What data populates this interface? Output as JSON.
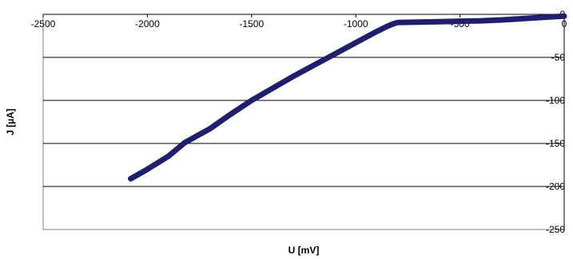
{
  "chart_data": {
    "type": "line",
    "xlabel": "U [mV]",
    "ylabel": "J [µA]",
    "xlim": [
      -2500,
      0
    ],
    "ylim": [
      -250,
      0
    ],
    "xticks": [
      -2500,
      -2000,
      -1500,
      -1000,
      -500,
      0
    ],
    "yticks": [
      0,
      -50,
      -100,
      -150,
      -200,
      -250
    ],
    "grid": "horizontal",
    "legend": "none",
    "series": [
      {
        "color": "#1f1f6e",
        "x": [
          -2080,
          -2000,
          -1900,
          -1820,
          -1700,
          -1600,
          -1500,
          -1400,
          -1300,
          -1200,
          -1100,
          -1000,
          -900,
          -850,
          -820,
          -800,
          -700,
          -600,
          -500,
          -400,
          -300,
          -200,
          -100,
          0
        ],
        "y": [
          -191,
          -180,
          -165,
          -149,
          -133,
          -116,
          -100,
          -86,
          -72,
          -59,
          -46,
          -33,
          -20,
          -14,
          -11,
          -9.5,
          -9,
          -8.5,
          -8,
          -7.5,
          -6.5,
          -5,
          -3.5,
          -2
        ]
      }
    ]
  }
}
